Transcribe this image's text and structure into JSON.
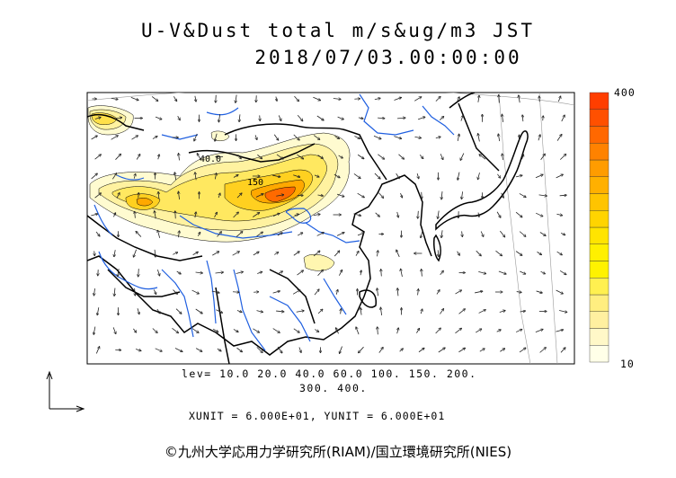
{
  "title": {
    "line1": "U-V&Dust total m/s&ug/m3 JST",
    "line2": "2018/07/03.00:00:00"
  },
  "map": {
    "field": "Dust total",
    "colors": {
      "land_outline": "#000000",
      "rivers": "#1f5fe0",
      "grid": "#888888",
      "contours": "#000000",
      "wind_arrows": "#222222"
    },
    "contour_labels": [
      "40.0",
      "150"
    ]
  },
  "colorbar": {
    "max_label": "400",
    "min_label": "10",
    "colors_low_to_high": [
      "#ffffe8",
      "#fff8c8",
      "#fff0a0",
      "#ffee80",
      "#fff050",
      "#fff200",
      "#fff000",
      "#ffe400",
      "#ffd400",
      "#ffc400",
      "#ffb000",
      "#ff9c00",
      "#ff8200",
      "#ff6800",
      "#ff5000",
      "#ff3e00"
    ]
  },
  "levels": {
    "line1": "lev= 10.0 20.0 40.0 60.0 100. 150. 200.",
    "line2": "300. 400."
  },
  "units": "XUNIT = 6.000E+01, YUNIT = 6.000E+01",
  "credit": "©九州大学応用力学研究所(RIAM)/国立環境研究所(NIES)"
}
